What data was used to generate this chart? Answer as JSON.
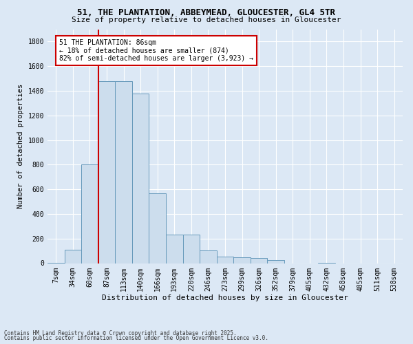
{
  "title_line1": "51, THE PLANTATION, ABBEYMEAD, GLOUCESTER, GL4 5TR",
  "title_line2": "Size of property relative to detached houses in Gloucester",
  "xlabel": "Distribution of detached houses by size in Gloucester",
  "ylabel": "Number of detached properties",
  "categories": [
    "7sqm",
    "34sqm",
    "60sqm",
    "87sqm",
    "113sqm",
    "140sqm",
    "166sqm",
    "193sqm",
    "220sqm",
    "246sqm",
    "273sqm",
    "299sqm",
    "326sqm",
    "352sqm",
    "379sqm",
    "405sqm",
    "432sqm",
    "458sqm",
    "485sqm",
    "511sqm",
    "538sqm"
  ],
  "values": [
    5,
    110,
    800,
    1480,
    1480,
    1380,
    570,
    230,
    230,
    105,
    55,
    45,
    40,
    25,
    0,
    0,
    5,
    0,
    0,
    0,
    0
  ],
  "bar_color": "#ccdded",
  "bar_edge_color": "#6699bb",
  "vline_x": 2.5,
  "vline_color": "#cc0000",
  "ylim": [
    0,
    1900
  ],
  "yticks": [
    0,
    200,
    400,
    600,
    800,
    1000,
    1200,
    1400,
    1600,
    1800
  ],
  "annotation_text": "51 THE PLANTATION: 86sqm\n← 18% of detached houses are smaller (874)\n82% of semi-detached houses are larger (3,923) →",
  "annotation_box_color": "#ffffff",
  "annotation_box_edge": "#cc0000",
  "footnote_line1": "Contains HM Land Registry data © Crown copyright and database right 2025.",
  "footnote_line2": "Contains public sector information licensed under the Open Government Licence v3.0.",
  "bg_color": "#dce8f5",
  "grid_color": "#ffffff",
  "title_fontsize": 9,
  "subtitle_fontsize": 8,
  "tick_fontsize": 7,
  "ylabel_fontsize": 7.5,
  "xlabel_fontsize": 8
}
